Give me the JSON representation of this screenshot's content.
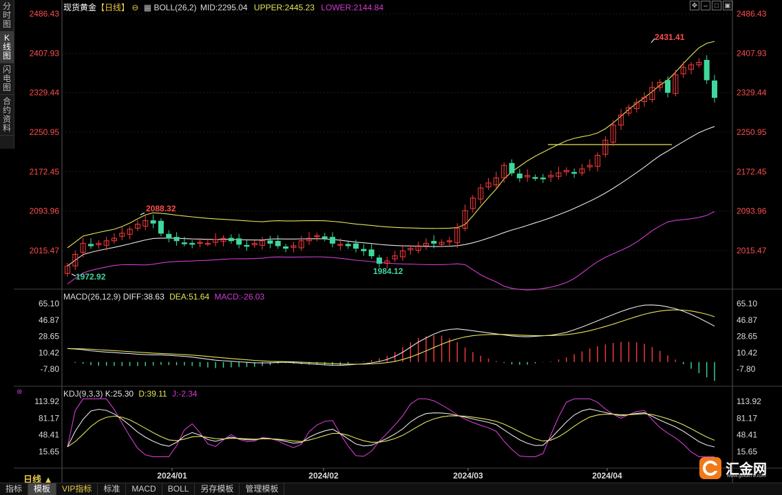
{
  "sidebar": {
    "tabs": [
      "分时图",
      "K线图",
      "闪电图",
      "合约资料"
    ],
    "active": 1
  },
  "header": {
    "symbol": "现货黄金",
    "period": "【日线】",
    "boll": "BOLL(26,2)",
    "mid": "MID:2295.04",
    "upper": "UPPER:2445.23",
    "lower": "LOWER:2144.84"
  },
  "macd_header": {
    "name": "MACD(26,12,9)",
    "diff": "DIFF:38.63",
    "dea": "DEA:51.64",
    "macd": "MACD:-26.03"
  },
  "kdj_header": {
    "name": "KDJ(9,3,3)",
    "k": "K:25.30",
    "d": "D:39.11",
    "j": "J:-2.34"
  },
  "period_label": "日线 ▲",
  "bottom_tabs": [
    "指标",
    "模板",
    "VIP指标",
    "标准",
    "MACD",
    "BOLL",
    "另存模板",
    "管理模板"
  ],
  "logo": {
    "name": "汇金网",
    "url": "www.gold678.com"
  },
  "colors": {
    "up": "#ff3b3b",
    "down": "#3fd89c",
    "upper": "#e6e65c",
    "mid": "#e8e8e8",
    "lower": "#d23cd2",
    "price_axis": "#ff4d4d",
    "k": "#e8e8e8",
    "d": "#e6e65c",
    "j": "#d23cd2"
  },
  "chart_data": [
    {
      "type": "candlestick",
      "title": "现货黄金 日线",
      "y_ticks": [
        2486.43,
        2407.93,
        2329.44,
        2250.95,
        2172.45,
        2093.96,
        2015.47
      ],
      "x_ticks": [
        "2024/01",
        "2024/02",
        "2024/03",
        "2024/04"
      ],
      "annotations": [
        {
          "text": "2088.32",
          "value": 2088.32
        },
        {
          "text": "1972.92",
          "value": 1972.92
        },
        {
          "text": "1984.12",
          "value": 1984.12
        },
        {
          "text": "2431.41",
          "value": 2431.41
        }
      ],
      "series": [
        {
          "name": "BOLL UPPER"
        },
        {
          "name": "BOLL MID"
        },
        {
          "name": "BOLL LOWER"
        }
      ]
    },
    {
      "type": "bar",
      "title": "MACD(26,12,9)",
      "y_ticks": [
        65.1,
        46.87,
        28.65,
        10.42,
        -7.8
      ]
    },
    {
      "type": "line",
      "title": "KDJ(9,3,3)",
      "y_ticks": [
        113.92,
        81.17,
        48.41,
        15.65
      ]
    }
  ]
}
